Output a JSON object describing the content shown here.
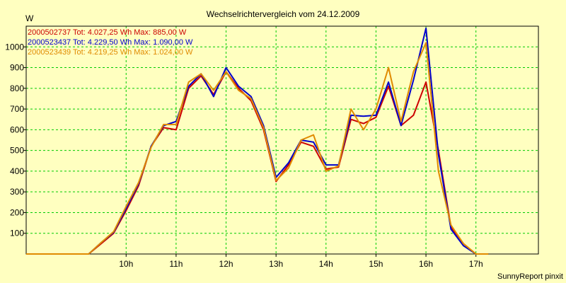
{
  "chart_data": {
    "type": "line",
    "title": "Wechselrichtervergleich vom 24.12.2009",
    "unit_label": "W",
    "credit": "SunnyReport pinxit",
    "xlim": [
      8.0,
      18.25
    ],
    "ylim": [
      0,
      1100
    ],
    "x_ticks": [
      {
        "value": 10,
        "label": "10h"
      },
      {
        "value": 11,
        "label": "11h"
      },
      {
        "value": 12,
        "label": "12h"
      },
      {
        "value": 13,
        "label": "13h"
      },
      {
        "value": 14,
        "label": "14h"
      },
      {
        "value": 15,
        "label": "15h"
      },
      {
        "value": 16,
        "label": "16h"
      },
      {
        "value": 17,
        "label": "17h"
      }
    ],
    "y_ticks": [
      {
        "value": 100,
        "label": "100"
      },
      {
        "value": 200,
        "label": "200"
      },
      {
        "value": 300,
        "label": "300"
      },
      {
        "value": 400,
        "label": "400"
      },
      {
        "value": 500,
        "label": "500"
      },
      {
        "value": 600,
        "label": "600"
      },
      {
        "value": 700,
        "label": "700"
      },
      {
        "value": 800,
        "label": "800"
      },
      {
        "value": 900,
        "label": "900"
      },
      {
        "value": 1000,
        "label": "1000"
      }
    ],
    "grid": true,
    "legend_position": "top-left",
    "x": [
      8.0,
      8.25,
      8.5,
      8.75,
      9.0,
      9.25,
      9.5,
      9.75,
      10.0,
      10.25,
      10.5,
      10.75,
      11.0,
      11.25,
      11.5,
      11.75,
      12.0,
      12.25,
      12.5,
      12.75,
      13.0,
      13.25,
      13.5,
      13.75,
      14.0,
      14.25,
      14.5,
      14.75,
      15.0,
      15.25,
      15.5,
      15.75,
      16.0,
      16.25,
      16.5,
      16.75,
      17.0,
      17.25
    ],
    "series": [
      {
        "name": "2000502737 Tot: 4.027,25 Wh Max: 885,00 W",
        "color": "#cc0000",
        "values": [
          0,
          0,
          0,
          0,
          0,
          0,
          50,
          100,
          210,
          330,
          520,
          610,
          600,
          800,
          860,
          770,
          880,
          800,
          740,
          600,
          350,
          430,
          540,
          520,
          410,
          420,
          650,
          630,
          660,
          810,
          620,
          670,
          830,
          500,
          130,
          50,
          0,
          0
        ]
      },
      {
        "name": "2000523437 Tot: 4.229,50 Wh Max: 1.090,00 W",
        "color": "#0000cc",
        "values": [
          0,
          0,
          0,
          0,
          0,
          0,
          55,
          105,
          220,
          340,
          520,
          620,
          640,
          810,
          870,
          760,
          900,
          810,
          760,
          620,
          370,
          440,
          550,
          540,
          430,
          430,
          670,
          665,
          670,
          830,
          620,
          840,
          1090,
          480,
          120,
          40,
          0,
          0
        ]
      },
      {
        "name": "2000523439 Tot: 4.219,25 Wh Max: 1.024,00 W",
        "color": "#e08a00",
        "values": [
          0,
          0,
          0,
          0,
          0,
          0,
          55,
          108,
          230,
          345,
          515,
          625,
          625,
          830,
          870,
          790,
          880,
          790,
          750,
          610,
          355,
          415,
          550,
          575,
          400,
          425,
          700,
          600,
          700,
          900,
          640,
          880,
          1020,
          400,
          140,
          50,
          0,
          0
        ]
      }
    ]
  }
}
